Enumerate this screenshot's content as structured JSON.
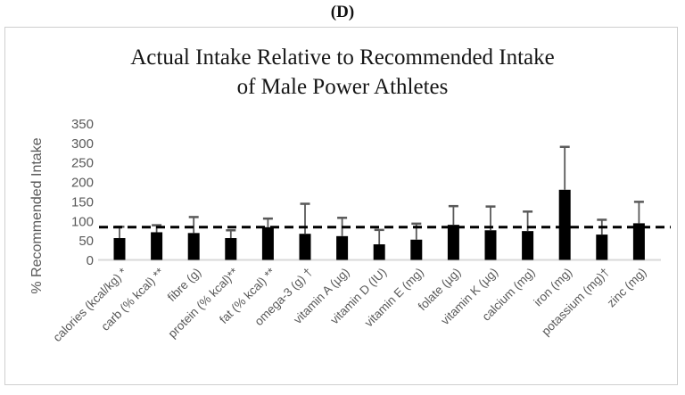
{
  "figure_label": "(D)",
  "chart_data": {
    "type": "bar",
    "title": "Actual Intake Relative to Recommended Intake of Male Power Athletes",
    "title_lines": [
      "Actual Intake Relative to Recommended Intake",
      "of Male Power Athletes"
    ],
    "xlabel": "",
    "ylabel": "% Recommended Intake",
    "ylim": [
      0,
      350
    ],
    "yticks": [
      0,
      50,
      100,
      150,
      200,
      250,
      300,
      350
    ],
    "grid": false,
    "legend_position": "none",
    "categories": [
      "calories (kcal/kg) *",
      "carb (% kcal) **",
      "fibre (g)",
      "protein (% kcal)**",
      "fat (% kcal) **",
      "omega-3 (g) †",
      "vitamin A (µg)",
      "vitamin D (IU)",
      "vitamin E (mg)",
      "folate (µg)",
      "vitamin K (µg)",
      "calcium (mg)",
      "iron (mg)",
      "potassium (mg)†",
      "zinc (mg)"
    ],
    "values": [
      56,
      71,
      69,
      56,
      84,
      67,
      61,
      40,
      52,
      90,
      76,
      74,
      180,
      65,
      94
    ],
    "error_plus": [
      29,
      18,
      41,
      20,
      22,
      77,
      47,
      37,
      41,
      48,
      61,
      50,
      110,
      38,
      55
    ],
    "reference_line": {
      "value": 84,
      "style": "dashed",
      "color": "#000000"
    },
    "bar_color": "#000000",
    "error_bar_color": "#595959",
    "axis_text_color": "#595959",
    "baseline_color": "#d9d9d9"
  }
}
